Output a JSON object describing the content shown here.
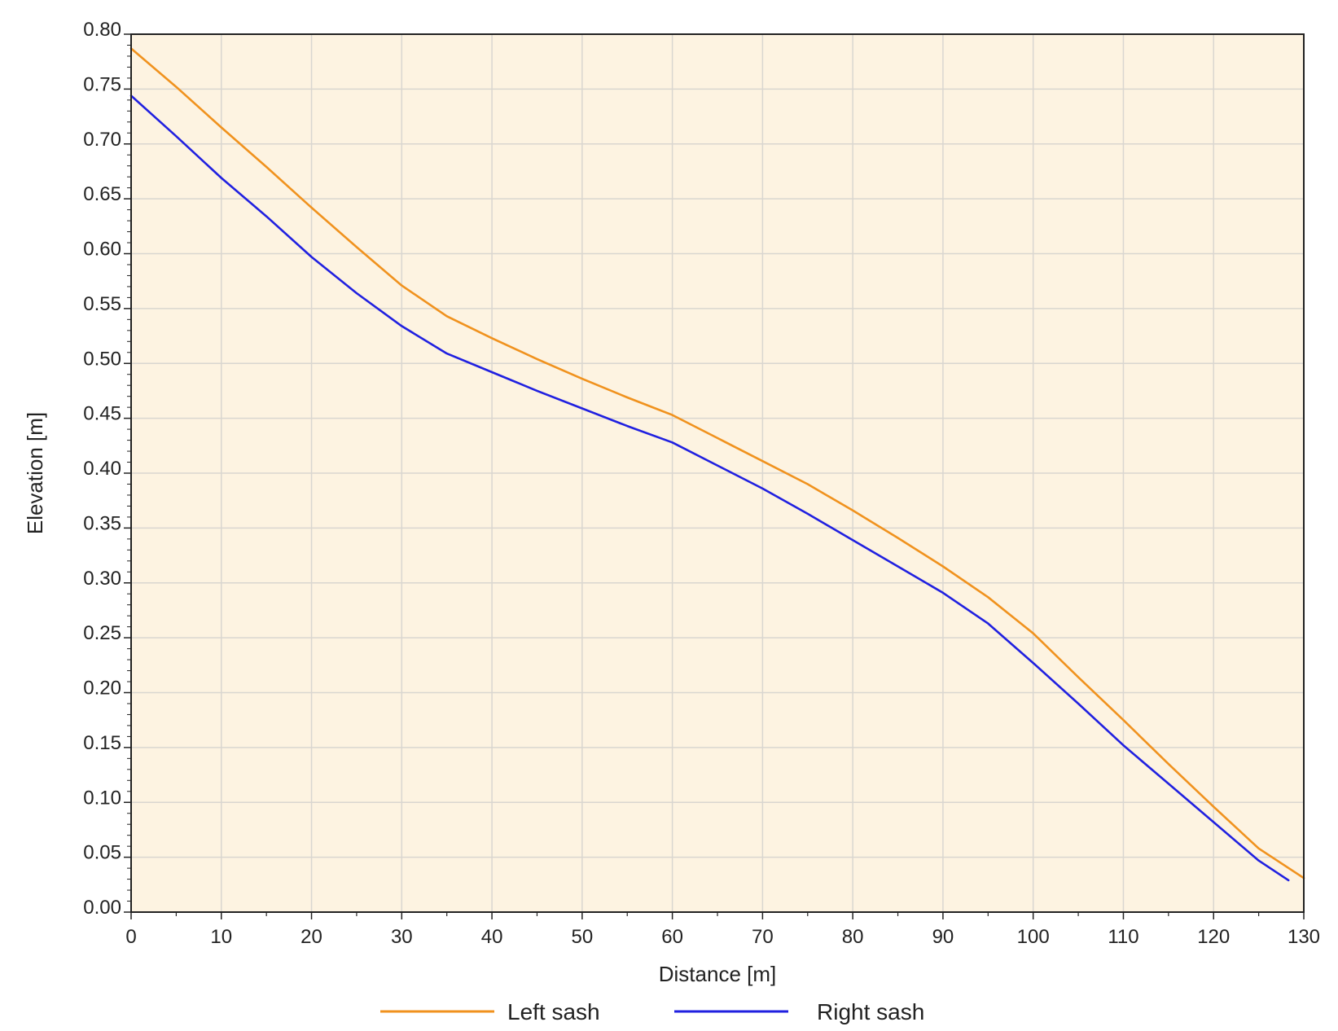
{
  "chart_data": {
    "type": "line",
    "title": "",
    "xlabel": "Distance [m]",
    "ylabel": "Elevation [m]",
    "xlim": [
      0,
      130
    ],
    "ylim": [
      0,
      0.8
    ],
    "x_ticks": [
      "0",
      "10",
      "20",
      "30",
      "40",
      "50",
      "60",
      "70",
      "80",
      "90",
      "100",
      "110",
      "120",
      "130"
    ],
    "y_ticks": [
      "0.00",
      "0.05",
      "0.10",
      "0.15",
      "0.20",
      "0.25",
      "0.30",
      "0.35",
      "0.40",
      "0.45",
      "0.50",
      "0.55",
      "0.60",
      "0.65",
      "0.70",
      "0.75",
      "0.80"
    ],
    "grid": true,
    "plot_background": "#fdf3e1",
    "legend_position": "bottom-center",
    "series": [
      {
        "name": "Left sash",
        "color": "#f0921e",
        "x": [
          0,
          5,
          10,
          15,
          20,
          25,
          30,
          35,
          40,
          45,
          50,
          55,
          60,
          65,
          70,
          75,
          80,
          85,
          90,
          95,
          100,
          105,
          110,
          115,
          120,
          125,
          130
        ],
        "y": [
          0.787,
          0.752,
          0.715,
          0.679,
          0.642,
          0.606,
          0.571,
          0.543,
          0.523,
          0.504,
          0.486,
          0.469,
          0.453,
          0.432,
          0.411,
          0.39,
          0.366,
          0.341,
          0.315,
          0.287,
          0.254,
          0.214,
          0.175,
          0.135,
          0.096,
          0.058,
          0.031
        ]
      },
      {
        "name": "Right sash",
        "color": "#2020e0",
        "x": [
          0,
          5,
          10,
          15,
          20,
          25,
          30,
          35,
          40,
          45,
          50,
          55,
          60,
          65,
          70,
          75,
          80,
          85,
          90,
          95,
          100,
          105,
          110,
          115,
          120,
          125,
          128.3
        ],
        "y": [
          0.744,
          0.707,
          0.669,
          0.634,
          0.597,
          0.564,
          0.534,
          0.509,
          0.492,
          0.475,
          0.459,
          0.443,
          0.428,
          0.407,
          0.386,
          0.363,
          0.339,
          0.315,
          0.291,
          0.263,
          0.227,
          0.19,
          0.152,
          0.117,
          0.082,
          0.047,
          0.029
        ]
      }
    ]
  }
}
